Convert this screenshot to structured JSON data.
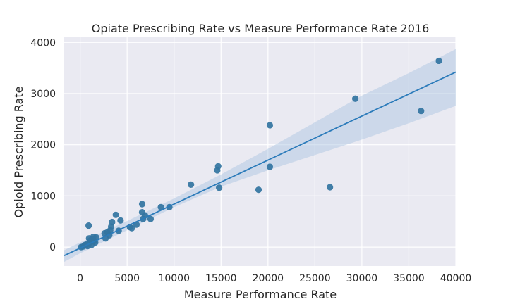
{
  "chart_data": {
    "type": "scatter",
    "title": "Opiate Prescribing Rate vs Measure Performance Rate 2016",
    "xlabel": "Measure Performance Rate",
    "ylabel": "Opioid Prescribing Rate",
    "xlim": [
      -1700,
      40000
    ],
    "ylim": [
      -370,
      4100
    ],
    "xticks": [
      0,
      5000,
      10000,
      15000,
      20000,
      25000,
      30000,
      35000,
      40000
    ],
    "yticks": [
      0,
      1000,
      2000,
      3000,
      4000
    ],
    "grid": true,
    "background": "#eaeaf2",
    "point_color": "#3274a1",
    "line_color": "#2b7bba",
    "band_color": "#a8c4e0",
    "points": [
      [
        100,
        0
      ],
      [
        300,
        10
      ],
      [
        500,
        40
      ],
      [
        600,
        30
      ],
      [
        700,
        60
      ],
      [
        800,
        20
      ],
      [
        900,
        420
      ],
      [
        950,
        170
      ],
      [
        1000,
        80
      ],
      [
        1100,
        130
      ],
      [
        1200,
        40
      ],
      [
        1300,
        160
      ],
      [
        1400,
        200
      ],
      [
        1500,
        120
      ],
      [
        1600,
        90
      ],
      [
        1700,
        190
      ],
      [
        2600,
        270
      ],
      [
        2700,
        170
      ],
      [
        2900,
        290
      ],
      [
        3100,
        230
      ],
      [
        3200,
        330
      ],
      [
        3300,
        400
      ],
      [
        3400,
        490
      ],
      [
        3800,
        630
      ],
      [
        4100,
        320
      ],
      [
        4300,
        520
      ],
      [
        5300,
        390
      ],
      [
        5500,
        370
      ],
      [
        6000,
        440
      ],
      [
        6600,
        840
      ],
      [
        6600,
        680
      ],
      [
        6700,
        550
      ],
      [
        6900,
        620
      ],
      [
        7500,
        550
      ],
      [
        8600,
        780
      ],
      [
        9500,
        780
      ],
      [
        11800,
        1220
      ],
      [
        14600,
        1500
      ],
      [
        14700,
        1580
      ],
      [
        14800,
        1160
      ],
      [
        19000,
        1120
      ],
      [
        20200,
        2380
      ],
      [
        20200,
        1570
      ],
      [
        26600,
        1170
      ],
      [
        29300,
        2900
      ],
      [
        36300,
        2660
      ],
      [
        38200,
        3640
      ]
    ],
    "regression": {
      "slope": 0.086,
      "intercept": -20
    },
    "confidence_band": [
      {
        "x": -1700,
        "lower": -290,
        "upper": -60
      },
      {
        "x": 0,
        "lower": -120,
        "upper": 90
      },
      {
        "x": 5000,
        "lower": 330,
        "upper": 510
      },
      {
        "x": 10000,
        "lower": 780,
        "upper": 950
      },
      {
        "x": 15000,
        "lower": 1180,
        "upper": 1420
      },
      {
        "x": 20000,
        "lower": 1500,
        "upper": 1920
      },
      {
        "x": 25000,
        "lower": 1800,
        "upper": 2440
      },
      {
        "x": 30000,
        "lower": 2100,
        "upper": 2960
      },
      {
        "x": 35000,
        "lower": 2420,
        "upper": 3400
      },
      {
        "x": 40000,
        "lower": 2760,
        "upper": 3870
      }
    ]
  }
}
